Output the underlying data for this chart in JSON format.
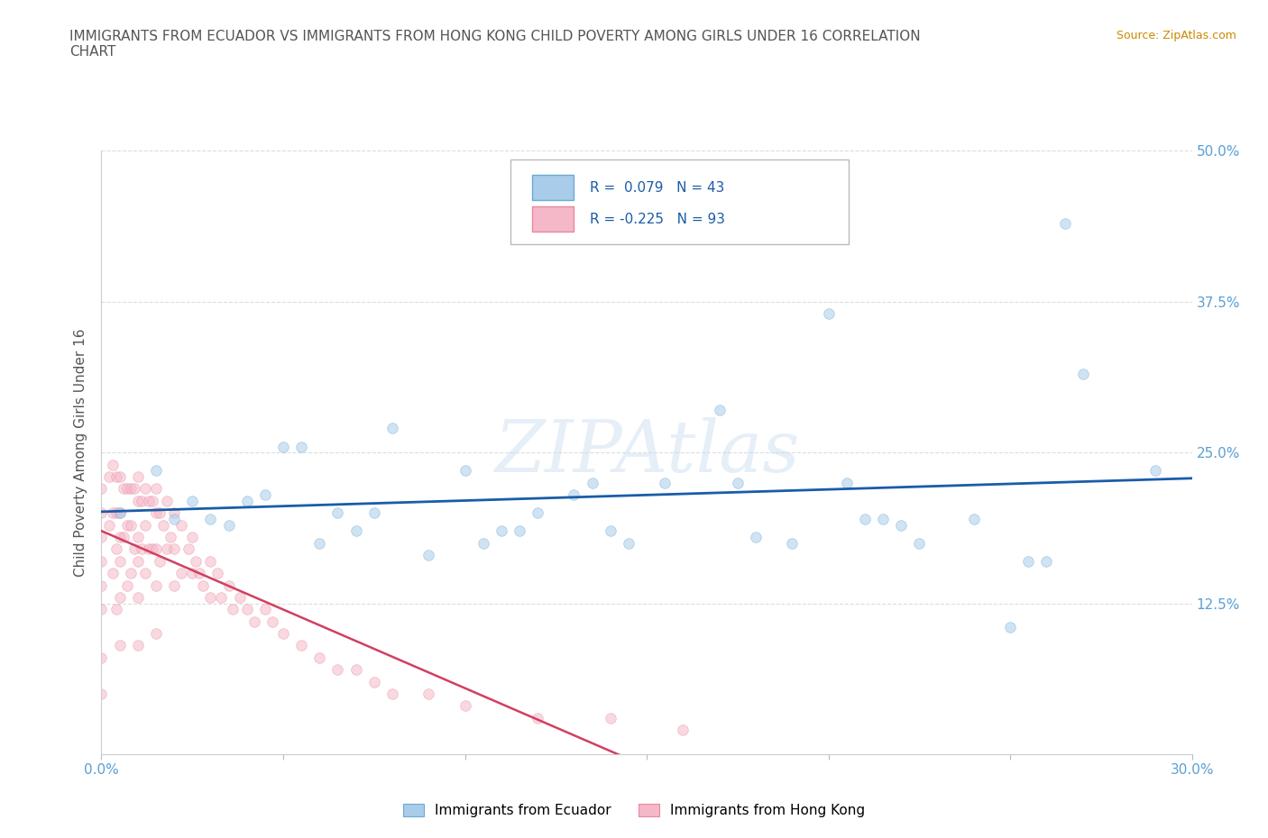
{
  "title": "IMMIGRANTS FROM ECUADOR VS IMMIGRANTS FROM HONG KONG CHILD POVERTY AMONG GIRLS UNDER 16 CORRELATION\nCHART",
  "source_text": "Source: ZipAtlas.com",
  "ylabel": "Child Poverty Among Girls Under 16",
  "xlim": [
    0.0,
    0.3
  ],
  "ylim": [
    0.0,
    0.5
  ],
  "xticks": [
    0.0,
    0.05,
    0.1,
    0.15,
    0.2,
    0.25,
    0.3
  ],
  "xticklabels": [
    "0.0%",
    "",
    "",
    "",
    "",
    "",
    "30.0%"
  ],
  "yticks": [
    0.0,
    0.125,
    0.25,
    0.375,
    0.5
  ],
  "yticklabels_right": [
    "",
    "12.5%",
    "25.0%",
    "37.5%",
    "50.0%"
  ],
  "ecuador_color": "#a8ccea",
  "ecuador_edge": "#6aaad4",
  "hk_color": "#f5b8c8",
  "hk_edge": "#e888a0",
  "trend_ecuador_color": "#1a5ca8",
  "trend_hk_solid_color": "#d04060",
  "trend_hk_dash_color": "#f0a0b8",
  "R_ecuador": 0.079,
  "N_ecuador": 43,
  "R_hk": -0.225,
  "N_hk": 93,
  "legend_ecuador": "Immigrants from Ecuador",
  "legend_hk": "Immigrants from Hong Kong",
  "watermark": "ZIPAtlas",
  "ecuador_x": [
    0.005,
    0.015,
    0.02,
    0.025,
    0.03,
    0.035,
    0.04,
    0.045,
    0.05,
    0.055,
    0.06,
    0.065,
    0.07,
    0.075,
    0.08,
    0.09,
    0.1,
    0.105,
    0.11,
    0.115,
    0.12,
    0.13,
    0.135,
    0.14,
    0.145,
    0.155,
    0.17,
    0.175,
    0.18,
    0.19,
    0.2,
    0.205,
    0.21,
    0.215,
    0.22,
    0.225,
    0.24,
    0.25,
    0.255,
    0.26,
    0.265,
    0.27,
    0.29
  ],
  "ecuador_y": [
    0.2,
    0.235,
    0.195,
    0.21,
    0.195,
    0.19,
    0.21,
    0.215,
    0.255,
    0.255,
    0.175,
    0.2,
    0.185,
    0.2,
    0.27,
    0.165,
    0.235,
    0.175,
    0.185,
    0.185,
    0.2,
    0.215,
    0.225,
    0.185,
    0.175,
    0.225,
    0.285,
    0.225,
    0.18,
    0.175,
    0.365,
    0.225,
    0.195,
    0.195,
    0.19,
    0.175,
    0.195,
    0.105,
    0.16,
    0.16,
    0.44,
    0.315,
    0.235
  ],
  "hk_x": [
    0.0,
    0.0,
    0.0,
    0.0,
    0.0,
    0.0,
    0.0,
    0.0,
    0.002,
    0.002,
    0.003,
    0.003,
    0.003,
    0.004,
    0.004,
    0.004,
    0.004,
    0.005,
    0.005,
    0.005,
    0.005,
    0.005,
    0.005,
    0.006,
    0.006,
    0.007,
    0.007,
    0.007,
    0.008,
    0.008,
    0.008,
    0.009,
    0.009,
    0.01,
    0.01,
    0.01,
    0.01,
    0.01,
    0.01,
    0.011,
    0.011,
    0.012,
    0.012,
    0.012,
    0.013,
    0.013,
    0.014,
    0.014,
    0.015,
    0.015,
    0.015,
    0.015,
    0.015,
    0.016,
    0.016,
    0.017,
    0.018,
    0.018,
    0.019,
    0.02,
    0.02,
    0.02,
    0.022,
    0.022,
    0.024,
    0.025,
    0.025,
    0.026,
    0.027,
    0.028,
    0.03,
    0.03,
    0.032,
    0.033,
    0.035,
    0.036,
    0.038,
    0.04,
    0.042,
    0.045,
    0.047,
    0.05,
    0.055,
    0.06,
    0.065,
    0.07,
    0.075,
    0.08,
    0.09,
    0.1,
    0.12,
    0.14,
    0.16
  ],
  "hk_y": [
    0.22,
    0.2,
    0.18,
    0.16,
    0.14,
    0.12,
    0.08,
    0.05,
    0.23,
    0.19,
    0.24,
    0.2,
    0.15,
    0.23,
    0.2,
    0.17,
    0.12,
    0.23,
    0.2,
    0.18,
    0.16,
    0.13,
    0.09,
    0.22,
    0.18,
    0.22,
    0.19,
    0.14,
    0.22,
    0.19,
    0.15,
    0.22,
    0.17,
    0.23,
    0.21,
    0.18,
    0.16,
    0.13,
    0.09,
    0.21,
    0.17,
    0.22,
    0.19,
    0.15,
    0.21,
    0.17,
    0.21,
    0.17,
    0.22,
    0.2,
    0.17,
    0.14,
    0.1,
    0.2,
    0.16,
    0.19,
    0.21,
    0.17,
    0.18,
    0.2,
    0.17,
    0.14,
    0.19,
    0.15,
    0.17,
    0.18,
    0.15,
    0.16,
    0.15,
    0.14,
    0.16,
    0.13,
    0.15,
    0.13,
    0.14,
    0.12,
    0.13,
    0.12,
    0.11,
    0.12,
    0.11,
    0.1,
    0.09,
    0.08,
    0.07,
    0.07,
    0.06,
    0.05,
    0.05,
    0.04,
    0.03,
    0.03,
    0.02
  ],
  "background_color": "#ffffff",
  "grid_color": "#dddddd",
  "tick_color": "#5A9FD4",
  "title_color": "#555555",
  "marker_size": 70,
  "marker_alpha": 0.55
}
